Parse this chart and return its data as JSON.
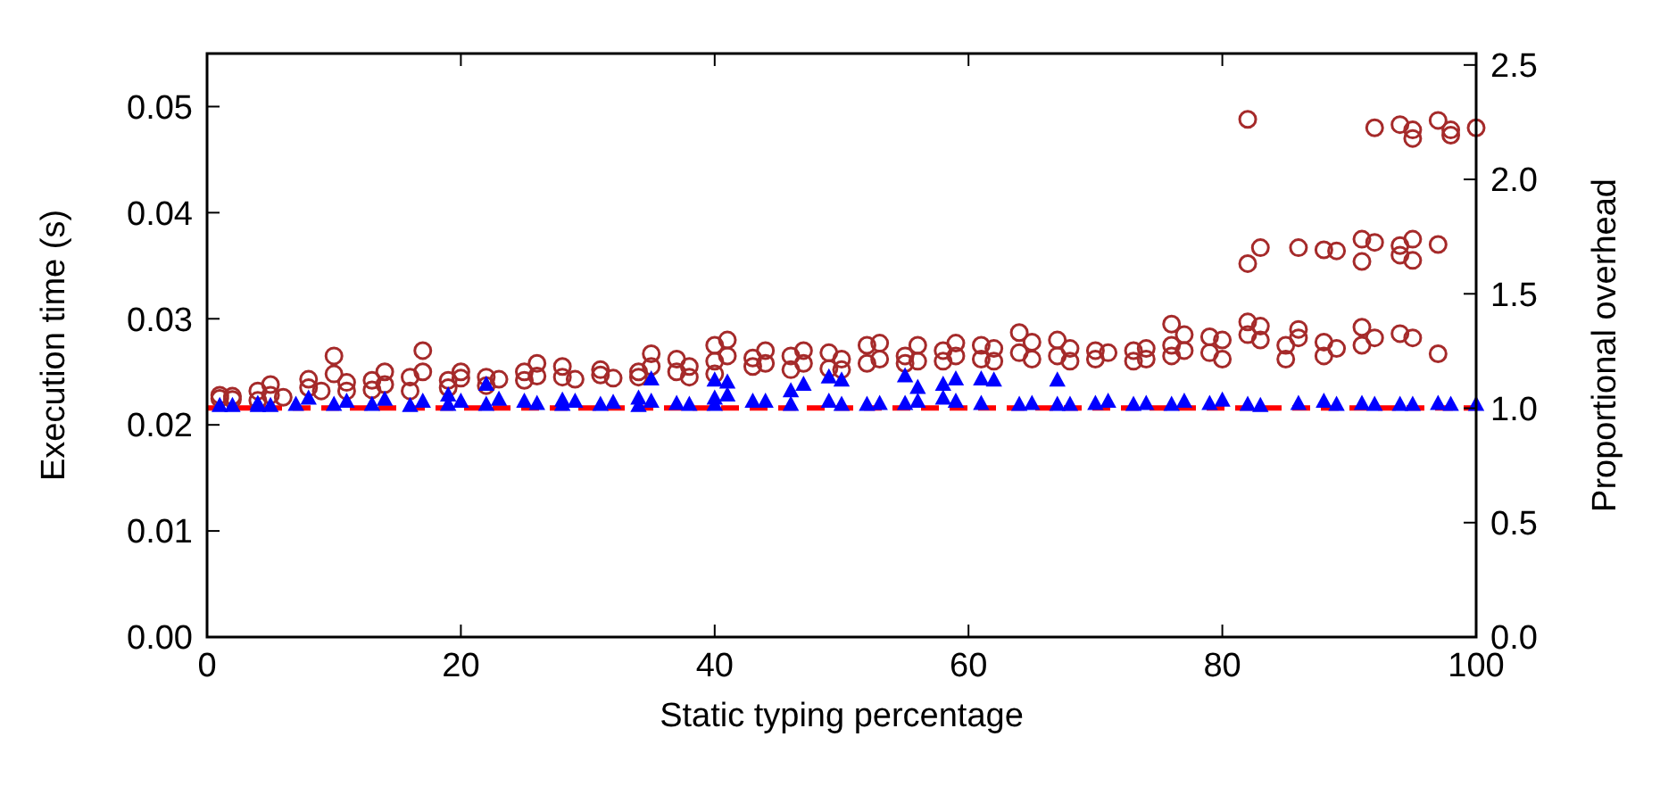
{
  "chart_data": {
    "type": "scatter",
    "xlabel": "Static typing percentage",
    "ylabel": "Execution time (s)",
    "y2label": "Proportional overhead",
    "xlim": [
      0,
      100
    ],
    "xticks": [
      0,
      20,
      40,
      60,
      80,
      100
    ],
    "ylim": [
      0,
      0.055
    ],
    "yticks": [
      {
        "value": 0,
        "label": "0.00"
      },
      {
        "value": 0.01,
        "label": "0.01"
      },
      {
        "value": 0.02,
        "label": "0.02"
      },
      {
        "value": 0.03,
        "label": "0.03"
      },
      {
        "value": 0.04,
        "label": "0.04"
      },
      {
        "value": 0.05,
        "label": "0.05"
      }
    ],
    "y2lim": [
      0,
      2.55
    ],
    "y2ticks": [
      {
        "value": 0,
        "label": "0.0"
      },
      {
        "value": 0.5,
        "label": "0.5"
      },
      {
        "value": 1,
        "label": "1.0"
      },
      {
        "value": 1.5,
        "label": "1.5"
      },
      {
        "value": 2,
        "label": "2.0"
      },
      {
        "value": 2.5,
        "label": "2.5"
      }
    ],
    "grid": false,
    "ref_lines": [
      {
        "axis": "y",
        "value": 0.0216,
        "color": "#ff0000",
        "line_style": "dashed"
      }
    ],
    "series": [
      {
        "color": "#a52a2a",
        "marker": "circle",
        "x": [
          1,
          1,
          2,
          2,
          4,
          4,
          5,
          5,
          6,
          8,
          8,
          9,
          10,
          10,
          11,
          11,
          13,
          13,
          14,
          14,
          16,
          16,
          17,
          17,
          19,
          19,
          20,
          20,
          22,
          22,
          23,
          25,
          25,
          26,
          26,
          28,
          28,
          29,
          31,
          31,
          32,
          34,
          34,
          35,
          35,
          37,
          37,
          38,
          38,
          40,
          40,
          40,
          41,
          41,
          43,
          43,
          44,
          44,
          46,
          46,
          47,
          47,
          49,
          49,
          50,
          50,
          52,
          52,
          53,
          53,
          55,
          55,
          56,
          56,
          58,
          58,
          59,
          59,
          61,
          61,
          62,
          62,
          64,
          64,
          65,
          65,
          67,
          67,
          68,
          68,
          70,
          70,
          71,
          73,
          73,
          74,
          74,
          76,
          76,
          76,
          77,
          77,
          79,
          79,
          80,
          80,
          82,
          82,
          82,
          82,
          83,
          83,
          83,
          85,
          85,
          86,
          86,
          86,
          88,
          88,
          88,
          89,
          89,
          91,
          91,
          91,
          91,
          92,
          92,
          92,
          94,
          94,
          94,
          94,
          95,
          95,
          95,
          95,
          95,
          97,
          97,
          97,
          98,
          98,
          100
        ],
        "values": [
          0.0225,
          0.0228,
          0.0227,
          0.0224,
          0.0223,
          0.0232,
          0.0228,
          0.0238,
          0.0226,
          0.0235,
          0.0243,
          0.0232,
          0.0265,
          0.0248,
          0.024,
          0.0232,
          0.0233,
          0.0242,
          0.0238,
          0.025,
          0.0245,
          0.0232,
          0.027,
          0.025,
          0.0242,
          0.0235,
          0.025,
          0.0244,
          0.0245,
          0.0237,
          0.0243,
          0.025,
          0.0242,
          0.0258,
          0.0246,
          0.0255,
          0.0245,
          0.0243,
          0.0252,
          0.0247,
          0.0244,
          0.0245,
          0.025,
          0.0267,
          0.0255,
          0.0262,
          0.025,
          0.0255,
          0.0245,
          0.0275,
          0.026,
          0.0248,
          0.028,
          0.0265,
          0.0263,
          0.0255,
          0.027,
          0.0258,
          0.0265,
          0.0252,
          0.027,
          0.0258,
          0.0268,
          0.0253,
          0.0262,
          0.0252,
          0.0275,
          0.0258,
          0.0277,
          0.0262,
          0.0258,
          0.0265,
          0.0275,
          0.026,
          0.027,
          0.026,
          0.0277,
          0.0265,
          0.0275,
          0.0262,
          0.0272,
          0.026,
          0.0287,
          0.0268,
          0.0278,
          0.0262,
          0.028,
          0.0265,
          0.0272,
          0.026,
          0.027,
          0.0262,
          0.0268,
          0.027,
          0.026,
          0.0272,
          0.0262,
          0.0295,
          0.0275,
          0.0265,
          0.0285,
          0.027,
          0.0283,
          0.0268,
          0.028,
          0.0262,
          0.0488,
          0.0352,
          0.0297,
          0.0285,
          0.0367,
          0.0293,
          0.028,
          0.0275,
          0.0262,
          0.0367,
          0.029,
          0.0282,
          0.0365,
          0.0278,
          0.0265,
          0.0364,
          0.0272,
          0.0375,
          0.0354,
          0.0292,
          0.0275,
          0.048,
          0.0372,
          0.0282,
          0.0483,
          0.0369,
          0.036,
          0.0286,
          0.0478,
          0.047,
          0.0375,
          0.0355,
          0.0282,
          0.0487,
          0.037,
          0.0267,
          0.0478,
          0.0473,
          0.048
        ]
      },
      {
        "color": "#0000ff",
        "marker": "triangle",
        "x": [
          1,
          2,
          4,
          4,
          5,
          7,
          8,
          10,
          11,
          13,
          14,
          16,
          17,
          19,
          19,
          20,
          22,
          22,
          23,
          25,
          26,
          28,
          28,
          29,
          31,
          32,
          34,
          34,
          35,
          35,
          37,
          38,
          40,
          40,
          40,
          41,
          41,
          43,
          44,
          46,
          46,
          47,
          49,
          49,
          50,
          50,
          52,
          53,
          55,
          55,
          56,
          56,
          58,
          58,
          59,
          59,
          61,
          61,
          62,
          64,
          65,
          67,
          67,
          68,
          70,
          71,
          73,
          74,
          76,
          77,
          79,
          80,
          82,
          83,
          86,
          88,
          89,
          91,
          92,
          94,
          95,
          97,
          98,
          100
        ],
        "values": [
          0.0218,
          0.0218,
          0.0218,
          0.022,
          0.0218,
          0.0219,
          0.0225,
          0.0219,
          0.0222,
          0.0219,
          0.0224,
          0.0218,
          0.0222,
          0.0228,
          0.0219,
          0.0222,
          0.0238,
          0.0219,
          0.0224,
          0.0222,
          0.022,
          0.0223,
          0.0219,
          0.0222,
          0.0219,
          0.0221,
          0.0225,
          0.0218,
          0.0243,
          0.0222,
          0.022,
          0.0219,
          0.0242,
          0.0225,
          0.0219,
          0.024,
          0.0228,
          0.0222,
          0.0222,
          0.0232,
          0.0219,
          0.0238,
          0.0245,
          0.0222,
          0.0242,
          0.0219,
          0.0219,
          0.022,
          0.0246,
          0.022,
          0.0235,
          0.0222,
          0.0238,
          0.0225,
          0.0243,
          0.0222,
          0.0243,
          0.022,
          0.0242,
          0.0219,
          0.022,
          0.0242,
          0.0219,
          0.0219,
          0.022,
          0.0222,
          0.0219,
          0.022,
          0.0219,
          0.0222,
          0.022,
          0.0223,
          0.0219,
          0.0218,
          0.022,
          0.0222,
          0.0219,
          0.022,
          0.0219,
          0.0219,
          0.0219,
          0.022,
          0.0219,
          0.0219
        ]
      }
    ]
  }
}
